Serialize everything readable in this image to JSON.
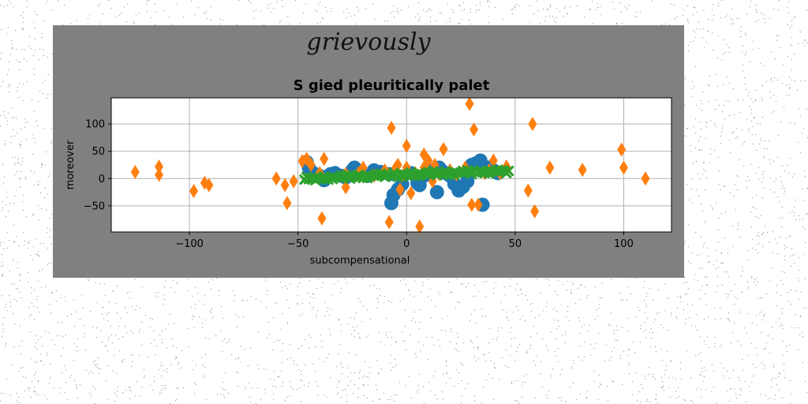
{
  "figure": {
    "suptitle": "grievously",
    "background": "#808080",
    "page_background": "#ffffff"
  },
  "chart_data": {
    "type": "scatter",
    "title": "S gied pleuritically palet",
    "xlabel": "subcompensational",
    "ylabel": "moreover",
    "xlim": [
      -136,
      122
    ],
    "ylim": [
      -98,
      148
    ],
    "xticks": [
      -100,
      -50,
      0,
      50,
      100
    ],
    "xtick_labels": [
      "−100",
      "−50",
      "0",
      "50",
      "100"
    ],
    "yticks": [
      -50,
      0,
      50,
      100
    ],
    "ytick_labels": [
      "−50",
      "0",
      "50",
      "100"
    ],
    "grid": true,
    "series": [
      {
        "color": "#1f77b4",
        "marker": "circle",
        "points": [
          [
            -46,
            30
          ],
          [
            -45,
            20
          ],
          [
            -43,
            10
          ],
          [
            -40,
            5
          ],
          [
            -38,
            -3
          ],
          [
            -35,
            8
          ],
          [
            -33,
            10
          ],
          [
            -30,
            5
          ],
          [
            -28,
            2
          ],
          [
            -25,
            15
          ],
          [
            -24,
            20
          ],
          [
            -22,
            10
          ],
          [
            -18,
            5
          ],
          [
            -15,
            15
          ],
          [
            -12,
            12
          ],
          [
            -8,
            8
          ],
          [
            -6,
            -30
          ],
          [
            -7,
            -45
          ],
          [
            -4,
            -20
          ],
          [
            -2,
            -10
          ],
          [
            2,
            10
          ],
          [
            5,
            -8
          ],
          [
            6,
            -12
          ],
          [
            8,
            5
          ],
          [
            10,
            12
          ],
          [
            12,
            15
          ],
          [
            14,
            -25
          ],
          [
            15,
            20
          ],
          [
            16,
            15
          ],
          [
            18,
            10
          ],
          [
            20,
            5
          ],
          [
            22,
            -10
          ],
          [
            24,
            -22
          ],
          [
            26,
            -15
          ],
          [
            28,
            -5
          ],
          [
            30,
            25
          ],
          [
            32,
            28
          ],
          [
            34,
            33
          ],
          [
            35,
            -48
          ],
          [
            38,
            20
          ],
          [
            40,
            15
          ],
          [
            42,
            10
          ]
        ]
      },
      {
        "color": "#ff7f0e",
        "marker": "diamond",
        "points": [
          [
            -125,
            12
          ],
          [
            -114,
            22
          ],
          [
            -114,
            7
          ],
          [
            -98,
            -23
          ],
          [
            -93,
            -8
          ],
          [
            -91,
            -12
          ],
          [
            -60,
            0
          ],
          [
            -56,
            -12
          ],
          [
            -55,
            -45
          ],
          [
            -52,
            -5
          ],
          [
            -48,
            32
          ],
          [
            -46,
            36
          ],
          [
            -44,
            25
          ],
          [
            -40,
            10
          ],
          [
            -39,
            -73
          ],
          [
            -38,
            36
          ],
          [
            -28,
            8
          ],
          [
            -28,
            -16
          ],
          [
            -22,
            10
          ],
          [
            -20,
            20
          ],
          [
            -15,
            5
          ],
          [
            -10,
            15
          ],
          [
            -8,
            -80
          ],
          [
            -7,
            93
          ],
          [
            -5,
            20
          ],
          [
            -4,
            25
          ],
          [
            -3,
            -20
          ],
          [
            -2,
            5
          ],
          [
            0,
            20
          ],
          [
            0,
            60
          ],
          [
            2,
            -27
          ],
          [
            4,
            10
          ],
          [
            6,
            -88
          ],
          [
            8,
            44
          ],
          [
            8,
            20
          ],
          [
            10,
            33
          ],
          [
            12,
            -5
          ],
          [
            13,
            25
          ],
          [
            15,
            8
          ],
          [
            17,
            54
          ],
          [
            20,
            15
          ],
          [
            23,
            8
          ],
          [
            27,
            20
          ],
          [
            29,
            137
          ],
          [
            30,
            -48
          ],
          [
            31,
            90
          ],
          [
            33,
            -48
          ],
          [
            36,
            10
          ],
          [
            38,
            15
          ],
          [
            40,
            33
          ],
          [
            43,
            10
          ],
          [
            46,
            22
          ],
          [
            56,
            -22
          ],
          [
            58,
            100
          ],
          [
            59,
            -60
          ],
          [
            66,
            20
          ],
          [
            81,
            16
          ],
          [
            99,
            53
          ],
          [
            100,
            20
          ],
          [
            110,
            0
          ]
        ]
      },
      {
        "color": "#2ca02c",
        "marker": "x",
        "points": [
          [
            -47,
            -2
          ],
          [
            -45,
            -1
          ],
          [
            -43,
            0
          ],
          [
            -41,
            0
          ],
          [
            -39,
            1
          ],
          [
            -37,
            1
          ],
          [
            -35,
            2
          ],
          [
            -33,
            2
          ],
          [
            -31,
            2
          ],
          [
            -29,
            3
          ],
          [
            -27,
            3
          ],
          [
            -25,
            3
          ],
          [
            -23,
            4
          ],
          [
            -21,
            4
          ],
          [
            -19,
            4
          ],
          [
            -17,
            5
          ],
          [
            -15,
            5
          ],
          [
            -13,
            5
          ],
          [
            -11,
            6
          ],
          [
            -9,
            6
          ],
          [
            -7,
            6
          ],
          [
            -5,
            7
          ],
          [
            -3,
            7
          ],
          [
            -1,
            7
          ],
          [
            1,
            8
          ],
          [
            3,
            8
          ],
          [
            5,
            8
          ],
          [
            7,
            8
          ],
          [
            9,
            9
          ],
          [
            11,
            9
          ],
          [
            13,
            9
          ],
          [
            15,
            10
          ],
          [
            17,
            10
          ],
          [
            19,
            10
          ],
          [
            21,
            10
          ],
          [
            23,
            11
          ],
          [
            25,
            11
          ],
          [
            27,
            11
          ],
          [
            29,
            12
          ],
          [
            31,
            12
          ],
          [
            33,
            12
          ],
          [
            35,
            12
          ],
          [
            37,
            13
          ],
          [
            39,
            13
          ],
          [
            41,
            13
          ],
          [
            43,
            13
          ],
          [
            45,
            14
          ],
          [
            47,
            14
          ],
          [
            -46,
            3
          ],
          [
            -42,
            -3
          ],
          [
            -38,
            4
          ],
          [
            -34,
            -1
          ],
          [
            -30,
            6
          ],
          [
            -26,
            0
          ],
          [
            -22,
            7
          ],
          [
            -18,
            1
          ],
          [
            -14,
            8
          ],
          [
            -10,
            3
          ],
          [
            -6,
            10
          ],
          [
            -2,
            4
          ],
          [
            2,
            11
          ],
          [
            6,
            5
          ],
          [
            10,
            12
          ],
          [
            14,
            6
          ],
          [
            18,
            13
          ],
          [
            22,
            7
          ],
          [
            26,
            14
          ],
          [
            30,
            8
          ],
          [
            34,
            15
          ],
          [
            38,
            9
          ],
          [
            42,
            16
          ],
          [
            46,
            10
          ],
          [
            -44,
            1
          ],
          [
            -36,
            -2
          ],
          [
            -28,
            6
          ],
          [
            -20,
            1
          ],
          [
            -12,
            9
          ],
          [
            -4,
            3
          ],
          [
            4,
            5
          ],
          [
            12,
            13
          ],
          [
            20,
            7
          ],
          [
            28,
            15
          ],
          [
            36,
            10
          ],
          [
            44,
            15
          ]
        ]
      }
    ]
  }
}
